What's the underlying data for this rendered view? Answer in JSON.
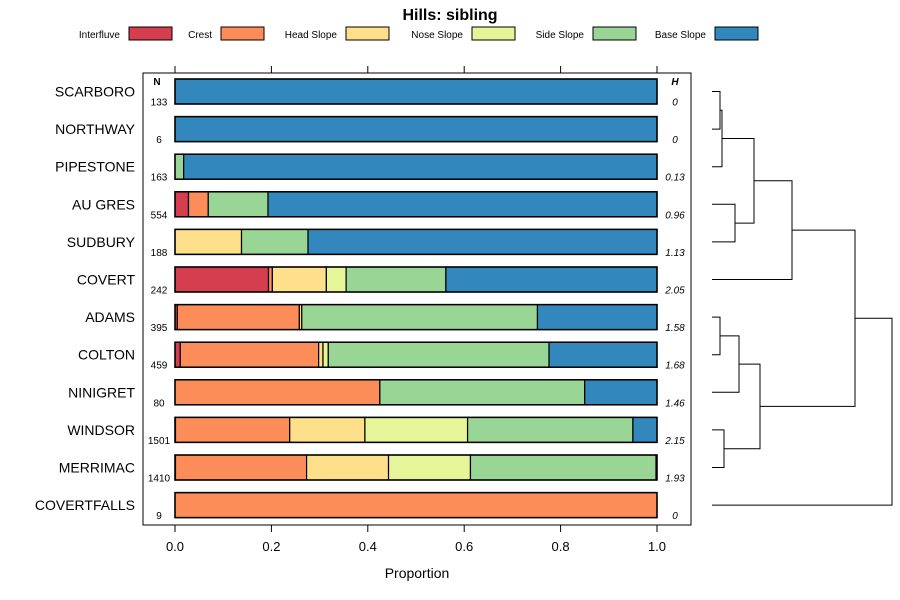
{
  "chart_data": {
    "type": "bar",
    "orientation": "horizontal",
    "stacked": true,
    "title": "Hills: sibling",
    "xlabel": "Proportion",
    "ylabel": "",
    "xlim": [
      0,
      1
    ],
    "x_ticks": [
      "0.0",
      "0.2",
      "0.4",
      "0.6",
      "0.8",
      "1.0"
    ],
    "n_header": "N",
    "h_header": "H",
    "legend_position": "top",
    "classes": [
      {
        "name": "Interfluve",
        "color": "#D53E4F"
      },
      {
        "name": "Crest",
        "color": "#FC8D59"
      },
      {
        "name": "Head Slope",
        "color": "#FEE08B"
      },
      {
        "name": "Nose Slope",
        "color": "#E6F598"
      },
      {
        "name": "Side Slope",
        "color": "#99D594"
      },
      {
        "name": "Base Slope",
        "color": "#3288BD"
      }
    ],
    "categories": [
      "SCARBORO",
      "NORTHWAY",
      "PIPESTONE",
      "AU GRES",
      "SUDBURY",
      "COVERT",
      "ADAMS",
      "COLTON",
      "NINIGRET",
      "WINDSOR",
      "MERRIMAC",
      "COVERTFALLS"
    ],
    "n": [
      "133",
      "6",
      "163",
      "554",
      "188",
      "242",
      "395",
      "459",
      "80",
      "1501",
      "1410",
      "9"
    ],
    "h": [
      "0",
      "0",
      "0.13",
      "0.96",
      "1.13",
      "2.05",
      "1.58",
      "1.68",
      "1.46",
      "2.15",
      "1.93",
      "0"
    ],
    "values": [
      [
        0,
        0,
        0,
        0,
        0,
        1.0
      ],
      [
        0,
        0,
        0,
        0,
        0,
        1.0
      ],
      [
        0,
        0,
        0,
        0,
        0.018,
        0.982
      ],
      [
        0.028,
        0.041,
        0,
        0,
        0.124,
        0.807
      ],
      [
        0,
        0,
        0.138,
        0,
        0.138,
        0.724
      ],
      [
        0.194,
        0.008,
        0.112,
        0.041,
        0.207,
        0.438
      ],
      [
        0.005,
        0.253,
        0.005,
        0,
        0.489,
        0.248
      ],
      [
        0.011,
        0.287,
        0.009,
        0.011,
        0.458,
        0.224
      ],
      [
        0,
        0.425,
        0,
        0,
        0.425,
        0.15
      ],
      [
        0.001,
        0.237,
        0.156,
        0.213,
        0.343,
        0.05
      ],
      [
        0.001,
        0.272,
        0.17,
        0.17,
        0.385,
        0.002
      ],
      [
        0,
        1.0,
        0,
        0,
        0,
        0
      ]
    ],
    "dendrogram_merges": [
      [
        0,
        1
      ],
      [
        3,
        4
      ],
      [
        -1,
        2
      ],
      [
        -3,
        -2
      ],
      [
        -4,
        5
      ],
      [
        6,
        7
      ],
      [
        -6,
        8
      ],
      [
        9,
        10
      ],
      [
        -7,
        -8
      ],
      [
        -5,
        -9
      ],
      [
        -10,
        11
      ]
    ]
  }
}
